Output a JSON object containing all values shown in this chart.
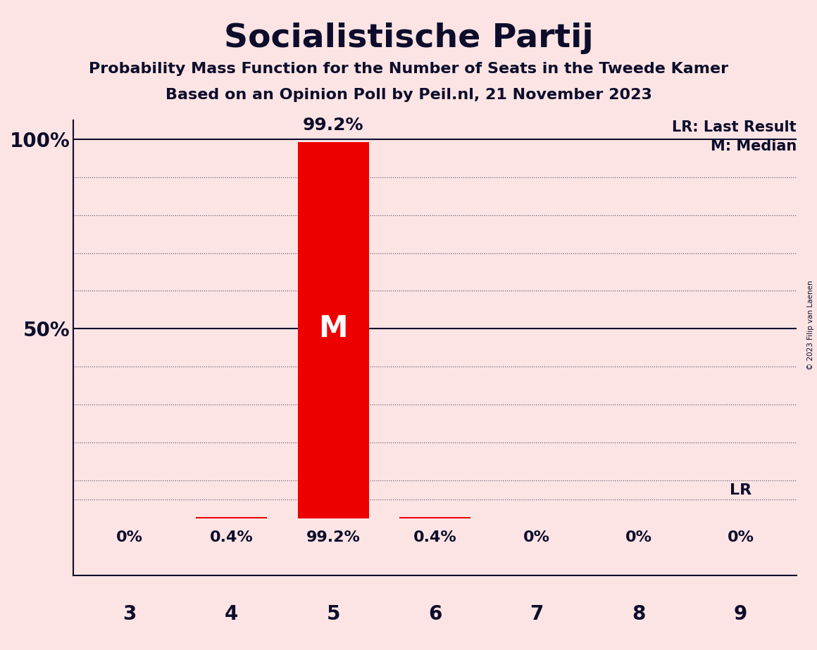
{
  "title": "Socialistische Partij",
  "subtitle1": "Probability Mass Function for the Number of Seats in the Tweede Kamer",
  "subtitle2": "Based on an Opinion Poll by Peil.nl, 21 November 2023",
  "copyright": "© 2023 Filip van Laenen",
  "seats": [
    3,
    4,
    5,
    6,
    7,
    8,
    9
  ],
  "probabilities": [
    0.0,
    0.4,
    99.2,
    0.4,
    0.0,
    0.0,
    0.0
  ],
  "bar_color": "#ee0000",
  "median_seat": 5,
  "last_result_seat": 9,
  "background_color": "#fce4e4",
  "bar_annotations": [
    "0%",
    "0.4%",
    "99.2%",
    "0.4%",
    "0%",
    "0%",
    "0%"
  ],
  "legend_lr": "LR: Last Result",
  "legend_m": "M: Median",
  "ylim_low": 0,
  "ylim_high": 100,
  "text_color": "#0d0d2b",
  "dotted_lines": [
    10,
    20,
    30,
    40,
    60,
    70,
    80,
    90
  ],
  "solid_lines": [
    50,
    100
  ],
  "lr_dotted_line": 5
}
